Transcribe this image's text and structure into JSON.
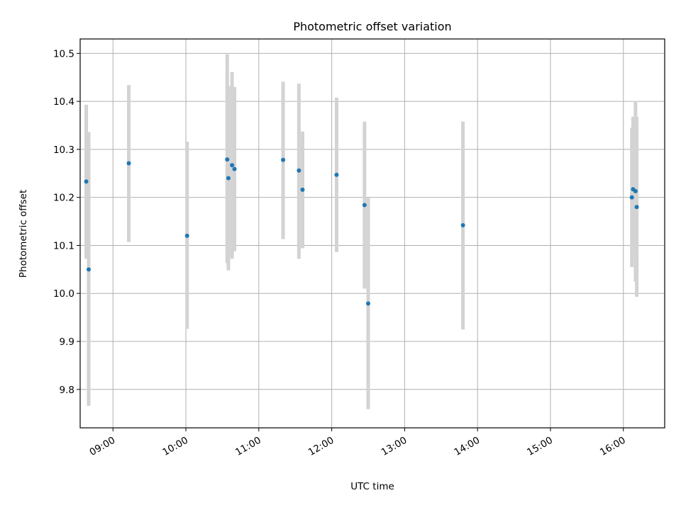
{
  "chart_data": {
    "type": "scatter",
    "title": "Photometric offset variation",
    "xlabel": "UTC time",
    "ylabel": "Photometric offset",
    "x_tick_labels": [
      "09:00",
      "10:00",
      "11:00",
      "12:00",
      "13:00",
      "14:00",
      "15:00",
      "16:00"
    ],
    "y_tick_labels": [
      "9.8",
      "9.9",
      "10.0",
      "10.1",
      "10.2",
      "10.3",
      "10.4",
      "10.5"
    ],
    "y_ticks": [
      9.8,
      9.9,
      10.0,
      10.1,
      10.2,
      10.3,
      10.4,
      10.5
    ],
    "ylim": [
      9.72,
      10.53
    ],
    "xlim": [
      "08:33",
      "16:34"
    ],
    "grid": true,
    "colors": {
      "points": "#1f77b4",
      "error_bars": "#d3d3d3",
      "grid": "#b0b0b0"
    },
    "series": [
      {
        "x": [
          "08:38",
          "08:40",
          "09:13",
          "10:01",
          "10:34",
          "10:35",
          "10:38",
          "10:40",
          "11:20",
          "11:33",
          "11:36",
          "12:04",
          "12:27",
          "12:30",
          "13:48",
          "16:07",
          "16:08",
          "16:10",
          "16:11"
        ],
        "y": [
          10.233,
          10.05,
          10.271,
          10.12,
          10.279,
          10.24,
          10.267,
          10.259,
          10.278,
          10.256,
          10.216,
          10.247,
          10.184,
          9.979,
          10.142,
          10.2,
          10.217,
          10.213,
          10.18
        ],
        "yerr_low": [
          10.072,
          9.766,
          10.107,
          9.926,
          10.063,
          10.048,
          10.072,
          10.088,
          10.113,
          10.072,
          10.094,
          10.086,
          10.01,
          9.759,
          9.925,
          10.055,
          10.09,
          10.025,
          9.993
        ],
        "yerr_high": [
          10.393,
          10.336,
          10.434,
          10.316,
          10.498,
          10.432,
          10.461,
          10.43,
          10.441,
          10.437,
          10.337,
          10.408,
          10.358,
          10.199,
          10.358,
          10.345,
          10.368,
          10.401,
          10.368
        ]
      }
    ]
  }
}
